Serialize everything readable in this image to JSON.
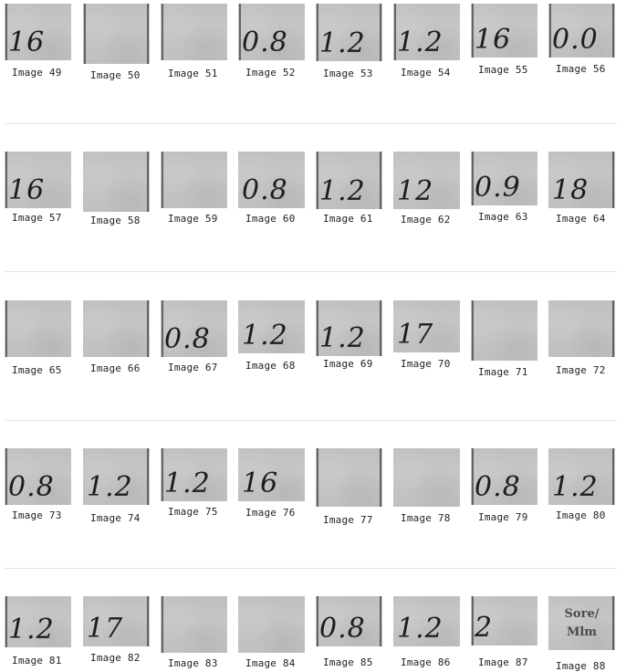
{
  "rows": [
    {
      "images": [
        {
          "label": "Image 49",
          "text": "16"
        },
        {
          "label": "Image 50",
          "text": ""
        },
        {
          "label": "Image 51",
          "text": ""
        },
        {
          "label": "Image 52",
          "text": "0.8"
        },
        {
          "label": "Image 53",
          "text": "1.2"
        },
        {
          "label": "Image 54",
          "text": "1.2"
        },
        {
          "label": "Image 55",
          "text": "16"
        },
        {
          "label": "Image 56",
          "text": "0.0"
        }
      ]
    },
    {
      "images": [
        {
          "label": "Image 57",
          "text": "16"
        },
        {
          "label": "Image 58",
          "text": ""
        },
        {
          "label": "Image 59",
          "text": ""
        },
        {
          "label": "Image 60",
          "text": "0.8"
        },
        {
          "label": "Image 61",
          "text": "1.2"
        },
        {
          "label": "Image 62",
          "text": "12"
        },
        {
          "label": "Image 63",
          "text": "0.9"
        },
        {
          "label": "Image 64",
          "text": "18"
        }
      ]
    },
    {
      "images": [
        {
          "label": "Image 65",
          "text": ""
        },
        {
          "label": "Image 66",
          "text": ""
        },
        {
          "label": "Image 67",
          "text": "0.8"
        },
        {
          "label": "Image 68",
          "text": "1.2"
        },
        {
          "label": "Image 69",
          "text": "1.2"
        },
        {
          "label": "Image 70",
          "text": "17"
        },
        {
          "label": "Image 71",
          "text": ""
        },
        {
          "label": "Image 72",
          "text": ""
        }
      ]
    },
    {
      "images": [
        {
          "label": "Image 73",
          "text": "0.8"
        },
        {
          "label": "Image 74",
          "text": "1.2"
        },
        {
          "label": "Image 75",
          "text": "1.2"
        },
        {
          "label": "Image 76",
          "text": "16"
        },
        {
          "label": "Image 77",
          "text": ""
        },
        {
          "label": "Image 78",
          "text": ""
        },
        {
          "label": "Image 79",
          "text": "0.8"
        },
        {
          "label": "Image 80",
          "text": "1.2"
        }
      ]
    },
    {
      "images": [
        {
          "label": "Image 81",
          "text": "1.2"
        },
        {
          "label": "Image 82",
          "text": "17"
        },
        {
          "label": "Image 83",
          "text": ""
        },
        {
          "label": "Image 84",
          "text": ""
        },
        {
          "label": "Image 85",
          "text": "0.8"
        },
        {
          "label": "Image 86",
          "text": "1.2"
        },
        {
          "label": "Image 87",
          "text": "2"
        },
        {
          "label": "Image 88",
          "text": "Sore/ Mlm",
          "printed": true
        }
      ]
    }
  ]
}
